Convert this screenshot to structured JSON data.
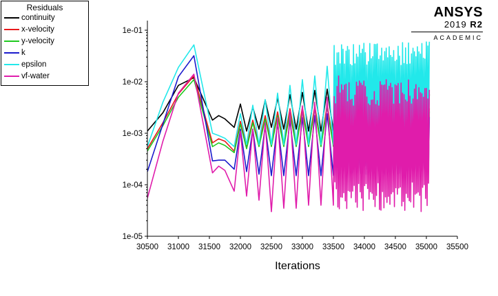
{
  "legend": {
    "title": "Residuals",
    "items": [
      {
        "label": "continuity",
        "color": "#000000"
      },
      {
        "label": "x-velocity",
        "color": "#e8191b"
      },
      {
        "label": "y-velocity",
        "color": "#1ec81e"
      },
      {
        "label": "k",
        "color": "#1a1acc"
      },
      {
        "label": "epsilon",
        "color": "#22e8ea"
      },
      {
        "label": "vf-water",
        "color": "#e01cab"
      }
    ]
  },
  "brand": {
    "name": "ANSYS",
    "version_year": "2019",
    "version_release": "R2",
    "edition": "ACADEMIC"
  },
  "chart_data": {
    "type": "line",
    "xlabel": "Iterations",
    "ylabel": "",
    "title": "",
    "xlim": [
      30500,
      35500
    ],
    "ylim": [
      1e-05,
      0.1
    ],
    "yscale": "log",
    "xticks": [
      "30500",
      "31000",
      "31500",
      "32000",
      "32500",
      "33000",
      "33500",
      "34000",
      "34500",
      "35000",
      "35500"
    ],
    "yticks": [
      "1e-01",
      "1e-02",
      "1e-03",
      "1e-04",
      "1e-05"
    ],
    "grid": false,
    "legend_position": "top-left",
    "series": [
      {
        "name": "continuity",
        "color": "#000000",
        "x": [
          30500,
          30750,
          31000,
          31250,
          31550,
          31650,
          31750,
          31900,
          32000,
          32100,
          32200,
          32300,
          32400,
          32500,
          32600,
          32700,
          32800,
          32900,
          33000,
          33100,
          33200,
          33300,
          33400,
          33500
        ],
        "y": [
          0.0011,
          0.0025,
          0.0085,
          0.012,
          0.0018,
          0.0022,
          0.0019,
          0.0013,
          0.0037,
          0.0011,
          0.0032,
          0.0012,
          0.0044,
          0.0013,
          0.0048,
          0.0012,
          0.0056,
          0.0012,
          0.0062,
          0.0011,
          0.0068,
          0.0011,
          0.0072,
          0.0011
        ],
        "band": {
          "x_start": 33500,
          "x_end": 35050,
          "low": 0.0009,
          "high": 0.0075
        }
      },
      {
        "name": "x-velocity",
        "color": "#e8191b",
        "x": [
          30500,
          30750,
          31000,
          31250,
          31550,
          31650,
          31750,
          31900,
          32000,
          32100,
          32200,
          32300,
          32400,
          32500,
          32600,
          32700,
          32800,
          32900,
          33000,
          33100,
          33200,
          33300,
          33400,
          33500
        ],
        "y": [
          0.0005,
          0.0016,
          0.0058,
          0.013,
          0.00065,
          0.00078,
          0.0007,
          0.00045,
          0.0017,
          0.00055,
          0.0018,
          0.0006,
          0.0022,
          0.0006,
          0.0026,
          0.0006,
          0.003,
          0.0006,
          0.0032,
          0.0006,
          0.0034,
          0.0006,
          0.0036,
          0.0006
        ],
        "band": {
          "x_start": 33500,
          "x_end": 35050,
          "low": 0.0005,
          "high": 0.004
        }
      },
      {
        "name": "y-velocity",
        "color": "#1ec81e",
        "x": [
          30500,
          30750,
          31000,
          31250,
          31550,
          31650,
          31750,
          31900,
          32000,
          32100,
          32200,
          32300,
          32400,
          32500,
          32600,
          32700,
          32800,
          32900,
          33000,
          33100,
          33200,
          33300,
          33400,
          33500
        ],
        "y": [
          0.00045,
          0.0014,
          0.005,
          0.011,
          0.00055,
          0.00065,
          0.00058,
          0.00042,
          0.0015,
          0.0005,
          0.0016,
          0.00055,
          0.0019,
          0.00055,
          0.0022,
          0.00055,
          0.0025,
          0.00055,
          0.0028,
          0.00055,
          0.003,
          0.00055,
          0.0032,
          0.00055
        ],
        "band": {
          "x_start": 33500,
          "x_end": 35050,
          "low": 0.0004,
          "high": 0.0035
        }
      },
      {
        "name": "k",
        "color": "#1a1acc",
        "x": [
          30500,
          30750,
          31000,
          31250,
          31550,
          31650,
          31750,
          31900,
          32000,
          32100,
          32200,
          32300,
          32400,
          32500,
          32600,
          32700,
          32800,
          32900,
          33000,
          33100,
          33200,
          33300,
          33400,
          33500
        ],
        "y": [
          0.00018,
          0.0015,
          0.0125,
          0.032,
          0.00029,
          0.0003,
          0.0003,
          0.0002,
          0.0012,
          0.00018,
          0.0012,
          0.00016,
          0.0014,
          0.00015,
          0.0016,
          0.00015,
          0.0018,
          0.00015,
          0.002,
          0.00015,
          0.0022,
          0.00015,
          0.0024,
          0.00015
        ],
        "band": {
          "x_start": 33500,
          "x_end": 35050,
          "low": 0.00015,
          "high": 0.0025
        }
      },
      {
        "name": "epsilon",
        "color": "#22e8ea",
        "x": [
          30500,
          30750,
          31000,
          31250,
          31550,
          31650,
          31750,
          31900,
          32000,
          32100,
          32200,
          32300,
          32400,
          32500,
          32600,
          32700,
          32800,
          32900,
          33000,
          33100,
          33200,
          33300,
          33400,
          33500
        ],
        "y": [
          0.00055,
          0.004,
          0.019,
          0.052,
          0.001,
          0.0009,
          0.0008,
          0.00055,
          0.0024,
          0.0006,
          0.0035,
          0.0006,
          0.0045,
          0.0006,
          0.006,
          0.0006,
          0.0085,
          0.0006,
          0.011,
          0.0006,
          0.013,
          0.0006,
          0.02,
          0.0006
        ],
        "band": {
          "x_start": 33500,
          "x_end": 35050,
          "low": 0.0005,
          "high": 0.06
        }
      },
      {
        "name": "vf-water",
        "color": "#e01cab",
        "x": [
          30500,
          30750,
          31000,
          31250,
          31550,
          31650,
          31750,
          31900,
          32000,
          32100,
          32200,
          32300,
          32400,
          32500,
          32600,
          32700,
          32800,
          32900,
          33000,
          33100,
          33200,
          33300,
          33400,
          33500
        ],
        "y": [
          5.5e-05,
          0.0007,
          0.006,
          0.014,
          0.00017,
          0.00023,
          0.00019,
          7.5e-05,
          0.0011,
          6e-05,
          0.0012,
          5e-05,
          0.0016,
          3e-05,
          0.002,
          3.5e-05,
          0.0027,
          3.5e-05,
          0.0034,
          4e-05,
          0.004,
          4e-05,
          0.005,
          4e-05
        ],
        "band": {
          "x_start": 33500,
          "x_end": 35050,
          "low": 3e-05,
          "high": 0.013
        }
      }
    ]
  }
}
